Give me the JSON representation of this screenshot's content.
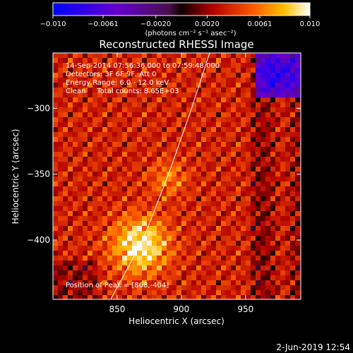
{
  "chart_data": {
    "type": "heatmap",
    "title": "Reconstructed RHESSI Image",
    "xlabel": "Heliocentric X (arcsec)",
    "ylabel": "Heliocentric Y (arcsec)",
    "xlim": [
      800,
      993
    ],
    "ylim": [
      -445,
      -258
    ],
    "x_ticks": [
      850,
      900,
      950
    ],
    "y_ticks": [
      -300,
      -350,
      -400
    ],
    "colorbar": {
      "range": [
        -0.01,
        0.01
      ],
      "tick_values": [
        -0.01,
        -0.0061,
        -0.002,
        0.002,
        0.0061,
        0.01
      ],
      "tick_labels": [
        "−0.010",
        "−0.0061",
        "−0.0020",
        "0.0020",
        "0.0061",
        "0.010"
      ],
      "unit_label": "(photons cm⁻² s⁻¹ asec⁻²)"
    },
    "annotations": [
      "14-Sep-2014 07:56:36.000 to 07:59:48.000",
      "Detectors: 3F 6F 9F, Att 0",
      "Energy Range: 6.0 - 12.0 keV",
      "Clean     Total counts: 8.65E+03"
    ],
    "peak_label": "Position of Peak = [868,-404]",
    "peak": [
      868,
      -404
    ],
    "limb_curve": [
      [
        845,
        -445
      ],
      [
        870,
        -400
      ],
      [
        890,
        -350
      ],
      [
        908,
        -300
      ],
      [
        922,
        -258
      ]
    ],
    "timestamp": "2-Jun-2019 12:54"
  }
}
